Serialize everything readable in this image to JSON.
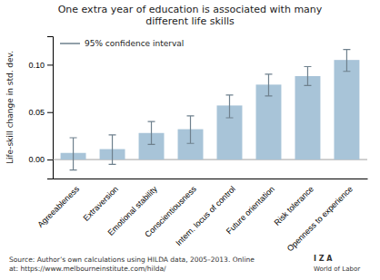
{
  "chart_data": {
    "type": "bar",
    "title": "One extra year of education is associated with many\ndifferent life skills",
    "ylabel": "Life-skill change in std. dev.",
    "categories": [
      "Agreeableness",
      "Extraversion",
      "Emotional stability",
      "Conscientiousness",
      "Intern. locus of control",
      "Future orientation",
      "Risk tolerance",
      "Openness to experience"
    ],
    "values": [
      0.007,
      0.011,
      0.028,
      0.032,
      0.057,
      0.079,
      0.088,
      0.105
    ],
    "err_low": [
      0.018,
      0.016,
      0.012,
      0.015,
      0.013,
      0.012,
      0.01,
      0.012
    ],
    "err_high": [
      0.016,
      0.015,
      0.012,
      0.014,
      0.011,
      0.011,
      0.01,
      0.011
    ],
    "color": "#a8c4d8",
    "legend_label": "95% confidence interval",
    "legend": "upper-left",
    "annotations": [
      "Source: Author’s own calculations using HILDA data, 2005–2013. Online\nat: https://www.melbourneinstitute.com/hilda/",
      "I Z A",
      "World of Labor"
    ],
    "ylim": [
      -0.02,
      0.13
    ],
    "yticks": [
      {
        "value": 0.0,
        "label": "0.00"
      },
      {
        "value": 0.05,
        "label": "0.05"
      },
      {
        "value": 0.1,
        "label": "0.10"
      }
    ],
    "grid": false
  }
}
